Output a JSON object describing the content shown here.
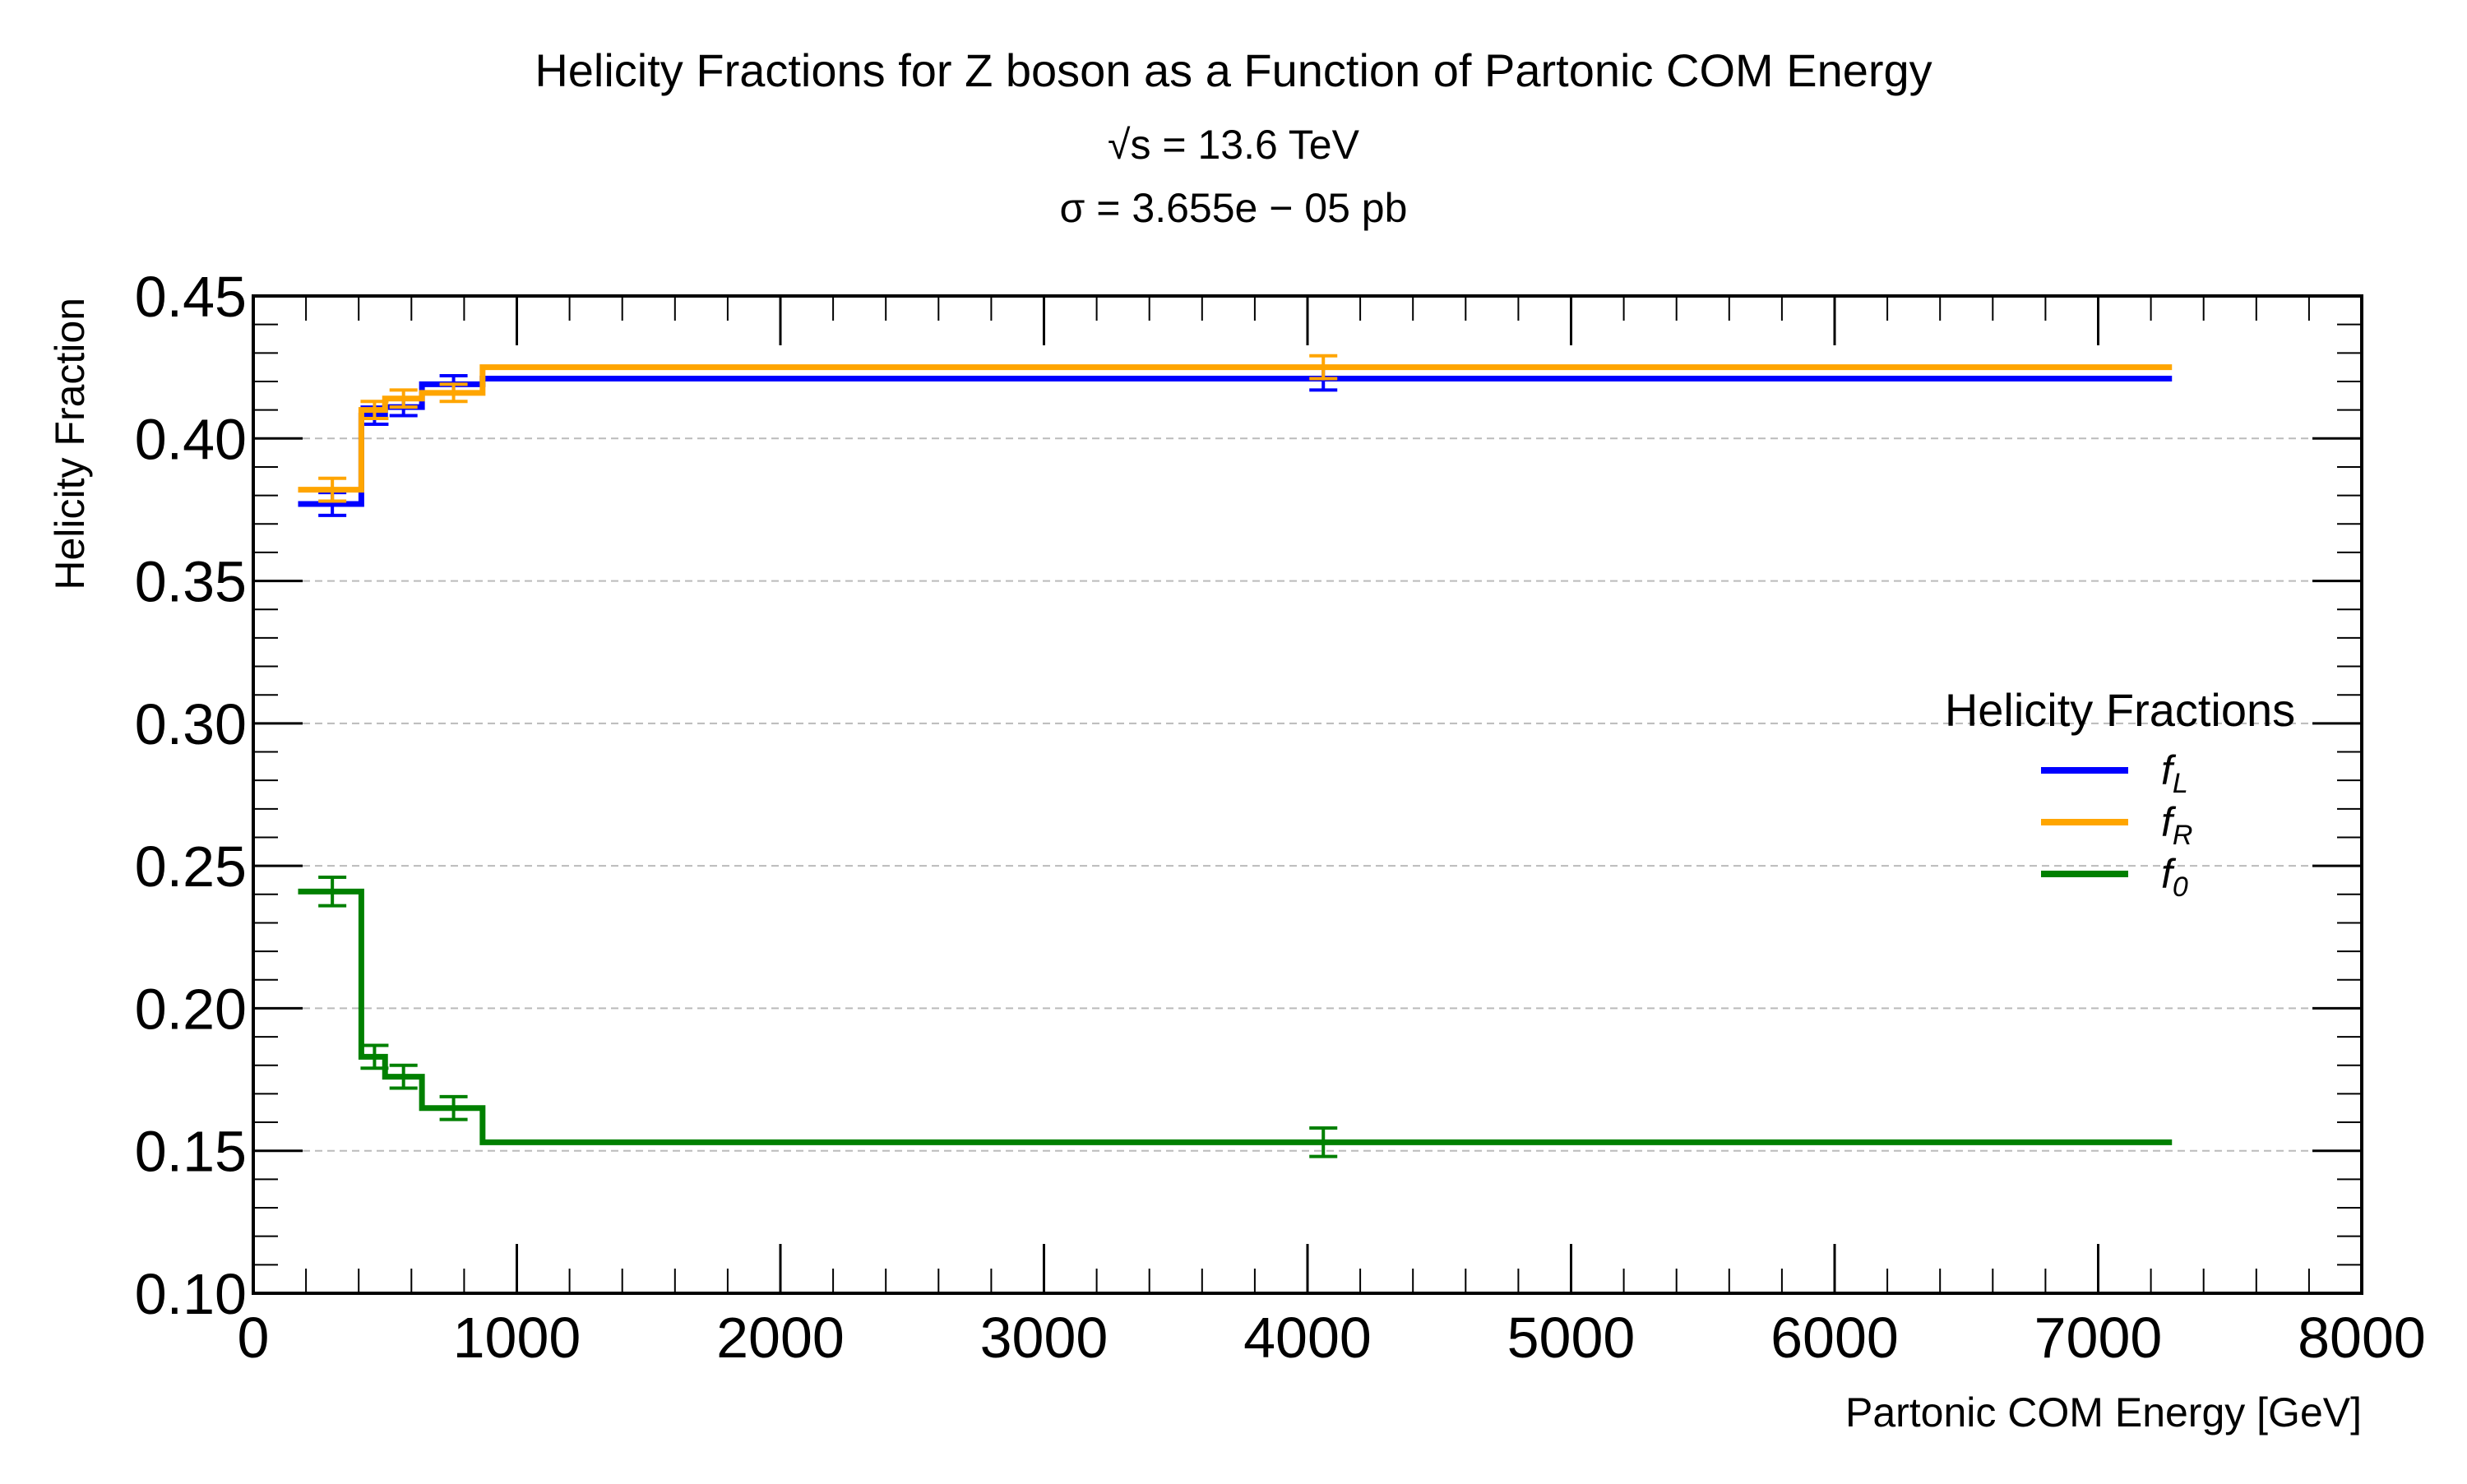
{
  "chart_data": {
    "type": "line",
    "title": "Helicity Fractions for Z boson as a Function of Partonic COM Energy",
    "subtitles": [
      "√s = 13.6 TeV",
      "σ = 3.655e − 05 pb"
    ],
    "xlabel": "Partonic COM Energy [GeV]",
    "ylabel": "Helicity Fraction",
    "xlim": [
      0,
      8000
    ],
    "ylim": [
      0.1,
      0.45
    ],
    "x_ticks": [
      0,
      1000,
      2000,
      3000,
      4000,
      5000,
      6000,
      7000,
      8000
    ],
    "x_tick_labels": [
      "0",
      "1000",
      "2000",
      "3000",
      "4000",
      "5000",
      "6000",
      "7000",
      "8000"
    ],
    "y_ticks": [
      0.1,
      0.15,
      0.2,
      0.25,
      0.3,
      0.35,
      0.4,
      0.45
    ],
    "y_tick_labels": [
      "0.10",
      "0.15",
      "0.20",
      "0.25",
      "0.30",
      "0.35",
      "0.40",
      "0.45"
    ],
    "grid": "horizontal dashed",
    "legend": {
      "title": "Helicity Fractions",
      "placement": "center-right"
    },
    "bin_edges": [
      170,
      410,
      500,
      640,
      870,
      7280
    ],
    "bin_centers": [
      300,
      460,
      570,
      760,
      4060
    ],
    "series": [
      {
        "name": "f_L",
        "label_base": "f",
        "label_sub": "L",
        "color": "#0000ff",
        "values": [
          0.377,
          0.408,
          0.411,
          0.419,
          0.421
        ],
        "errors": [
          0.004,
          0.003,
          0.003,
          0.003,
          0.004
        ]
      },
      {
        "name": "f_R",
        "label_base": "f",
        "label_sub": "R",
        "color": "#ffa500",
        "values": [
          0.382,
          0.41,
          0.414,
          0.416,
          0.425
        ],
        "errors": [
          0.004,
          0.003,
          0.003,
          0.003,
          0.004
        ]
      },
      {
        "name": "f_0",
        "label_base": "f",
        "label_sub": "0",
        "color": "#008000",
        "values": [
          0.241,
          0.183,
          0.176,
          0.165,
          0.153
        ],
        "errors": [
          0.005,
          0.004,
          0.004,
          0.004,
          0.005
        ]
      }
    ]
  }
}
